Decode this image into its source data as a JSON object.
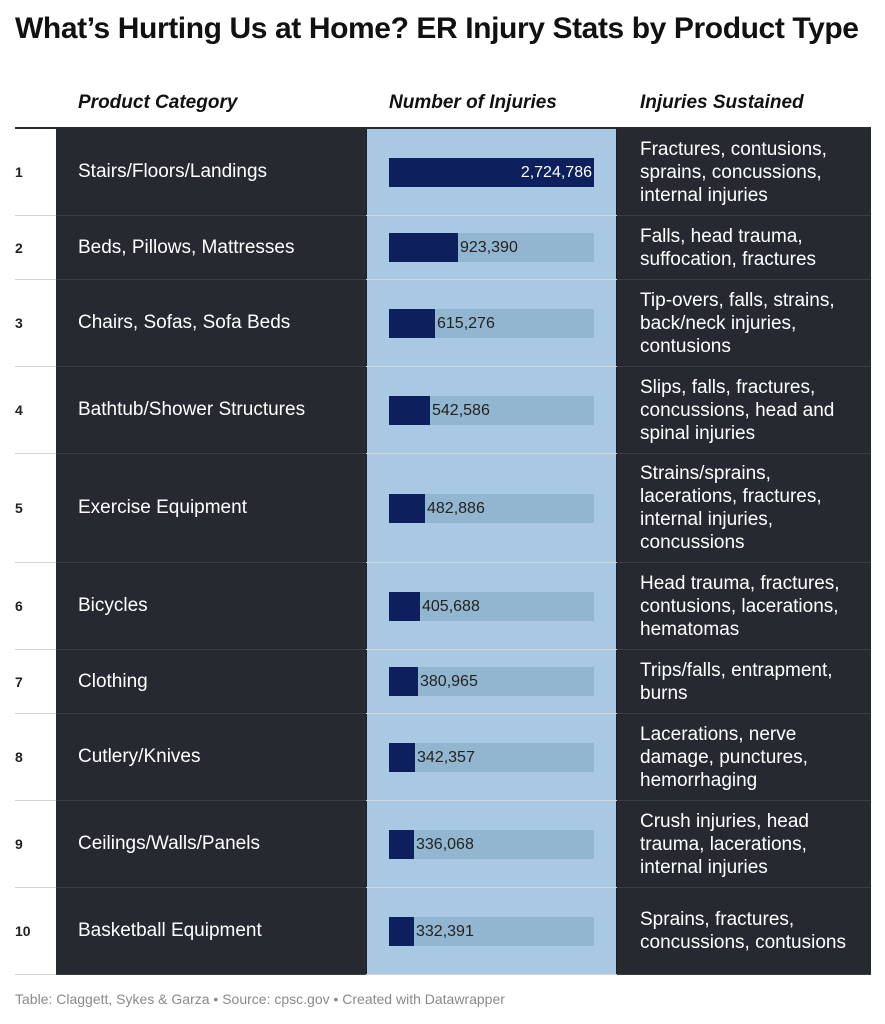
{
  "title": "What’s Hurting Us at Home? ER Injury Stats by Product Type",
  "headers": {
    "category": "Product Category",
    "number": "Number of Injuries",
    "injuries": "Injuries Sustained"
  },
  "footer": "Table: Claggett, Sykes & Garza • Source: cpsc.gov • Created with Datawrapper",
  "colors": {
    "dark_cell": "#262930",
    "bar_column_bg": "#a8c8e3",
    "bar_track": "#93b6d0",
    "bar_fill": "#0d1f5c"
  },
  "chart_data": {
    "type": "table",
    "title": "What’s Hurting Us at Home? ER Injury Stats by Product Type",
    "value_max": 2724786,
    "rows": [
      {
        "rank": "1",
        "category": "Stairs/Floors/Landings",
        "value": 2724786,
        "label": "2,724,786",
        "injuries": "Fractures, contusions, sprains, concussions, internal injuries"
      },
      {
        "rank": "2",
        "category": "Beds, Pillows, Mattresses",
        "value": 923390,
        "label": "923,390",
        "injuries": "Falls, head trauma, suffocation, fractures"
      },
      {
        "rank": "3",
        "category": "Chairs, Sofas, Sofa Beds",
        "value": 615276,
        "label": "615,276",
        "injuries": "Tip-overs, falls, strains, back/neck injuries, contusions"
      },
      {
        "rank": "4",
        "category": "Bathtub/Shower Structures",
        "value": 542586,
        "label": "542,586",
        "injuries": "Slips, falls, fractures, concussions, head and spinal injuries"
      },
      {
        "rank": "5",
        "category": "Exercise Equipment",
        "value": 482886,
        "label": "482,886",
        "injuries": "Strains/sprains, lacerations, fractures, internal injuries, concussions"
      },
      {
        "rank": "6",
        "category": "Bicycles",
        "value": 405688,
        "label": "405,688",
        "injuries": "Head trauma, fractures, contusions, lacerations, hematomas"
      },
      {
        "rank": "7",
        "category": "Clothing",
        "value": 380965,
        "label": "380,965",
        "injuries": "Trips/falls, entrapment, burns"
      },
      {
        "rank": "8",
        "category": "Cutlery/Knives",
        "value": 342357,
        "label": "342,357",
        "injuries": "Lacerations, nerve damage, punctures, hemorrhaging"
      },
      {
        "rank": "9",
        "category": "Ceilings/Walls/Panels",
        "value": 336068,
        "label": "336,068",
        "injuries": "Crush injuries, head trauma, lacerations, internal injuries"
      },
      {
        "rank": "10",
        "category": "Basketball Equipment",
        "value": 332391,
        "label": "332,391",
        "injuries": "Sprains, fractures, concussions, contusions"
      }
    ]
  }
}
